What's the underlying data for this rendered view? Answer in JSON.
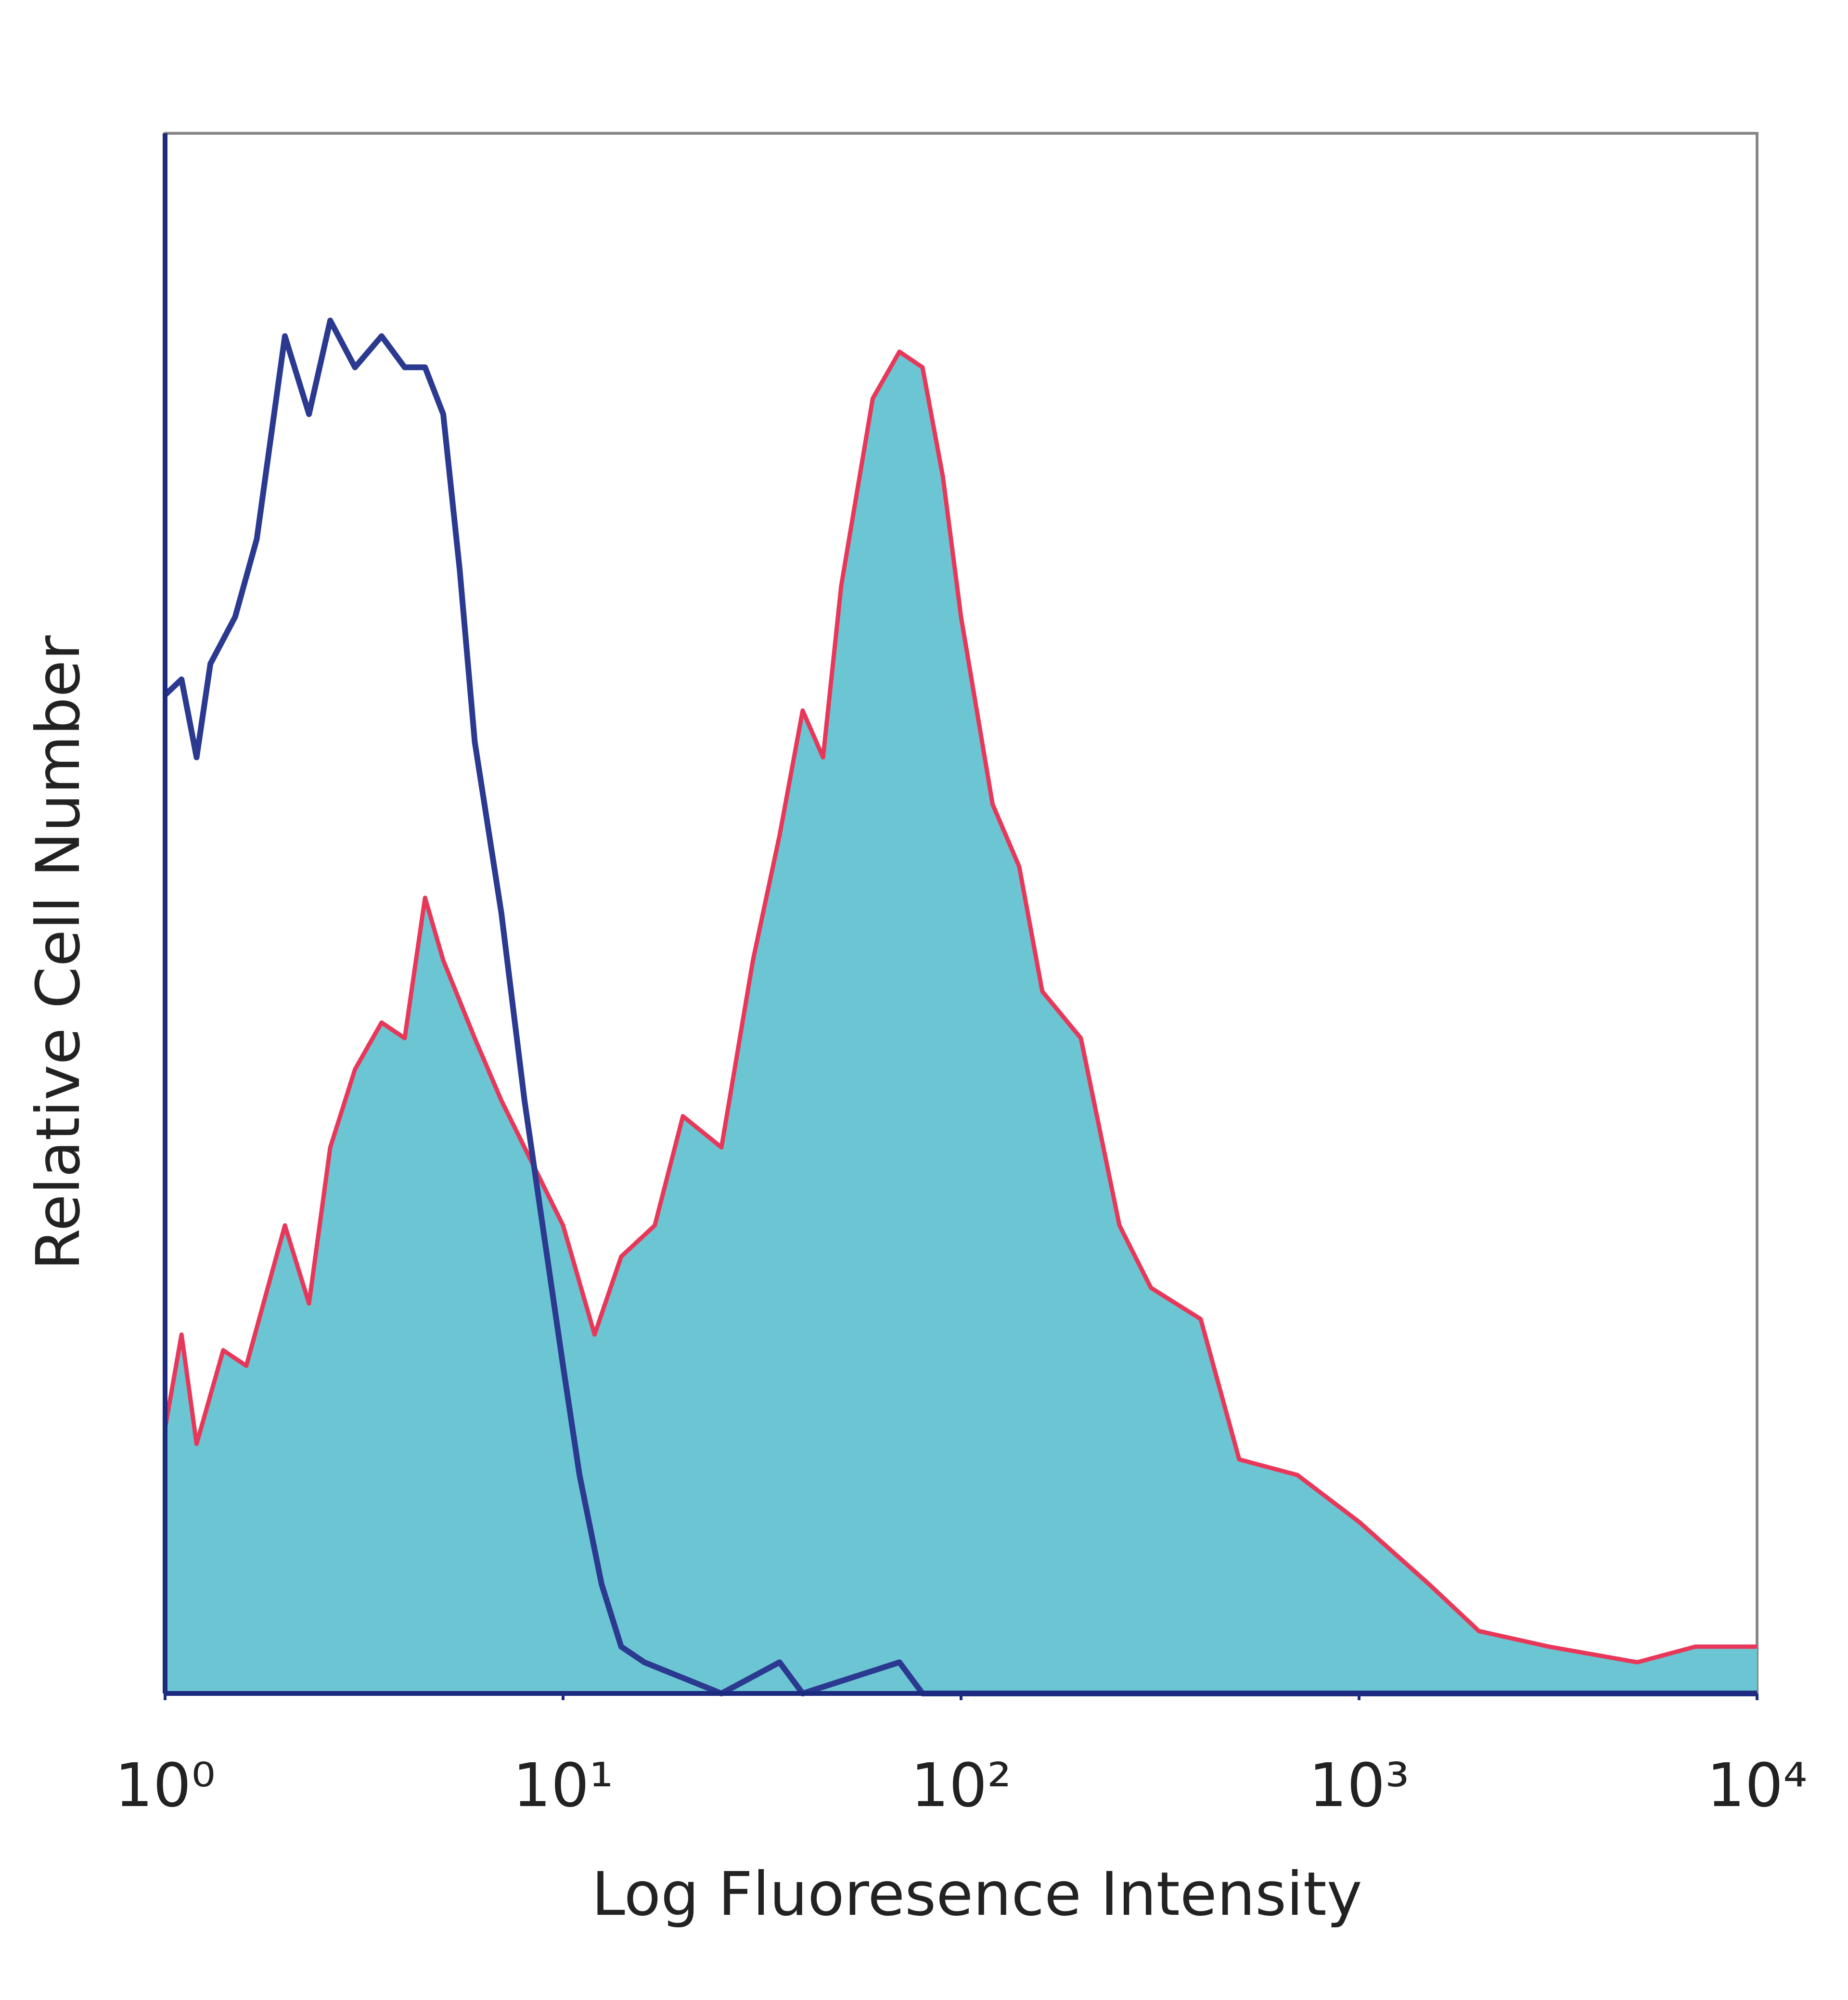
{
  "chart_data": {
    "type": "line",
    "x_label": "Log Fluoresence Intensity",
    "y_label": "Relative Cell Number",
    "xscale": "log",
    "xlim": [
      1,
      10000
    ],
    "ylim": [
      0,
      100
    ],
    "xticks": [
      {
        "value": 1,
        "label": "10⁰"
      },
      {
        "value": 10,
        "label": "10¹"
      },
      {
        "value": 100,
        "label": "10²"
      },
      {
        "value": 1000,
        "label": "10³"
      },
      {
        "value": 10000,
        "label": "10⁴"
      }
    ],
    "series": [
      {
        "color": "#2b3a90",
        "x": [
          1,
          1.1,
          1.2,
          1.3,
          1.5,
          1.7,
          2,
          2.3,
          2.6,
          3,
          3.5,
          4,
          4.5,
          5,
          5.5,
          6,
          7,
          8,
          9,
          10,
          11,
          12.5,
          14,
          16,
          20,
          25,
          35,
          40,
          70,
          80,
          100,
          1000,
          10000
        ],
        "values": [
          64,
          65,
          60,
          66,
          69,
          74,
          87,
          82,
          88,
          85,
          87,
          85,
          85,
          82,
          72,
          61,
          50,
          38,
          29,
          21,
          14,
          7,
          3,
          2,
          1,
          0,
          2,
          0,
          2,
          0,
          0,
          0,
          0
        ]
      },
      {
        "color": "#e8385a",
        "fill": "#6cc5d3",
        "x": [
          1,
          1.1,
          1.2,
          1.4,
          1.6,
          2,
          2.3,
          2.6,
          3,
          3.5,
          4,
          4.5,
          5,
          6,
          7,
          8,
          10,
          12,
          14,
          17,
          20,
          25,
          30,
          35,
          40,
          45,
          50,
          60,
          70,
          80,
          90,
          100,
          120,
          140,
          160,
          200,
          250,
          300,
          400,
          500,
          700,
          1000,
          1500,
          2000,
          3000,
          5000,
          7000,
          10000
        ],
        "values": [
          17,
          23,
          16,
          22,
          21,
          30,
          25,
          35,
          40,
          43,
          42,
          51,
          47,
          42,
          38,
          35,
          30,
          23,
          28,
          30,
          37,
          35,
          47,
          55,
          63,
          60,
          71,
          83,
          86,
          85,
          78,
          69,
          57,
          53,
          45,
          42,
          30,
          26,
          24,
          15,
          14,
          11,
          7,
          4,
          3,
          2,
          3,
          3
        ]
      }
    ]
  }
}
